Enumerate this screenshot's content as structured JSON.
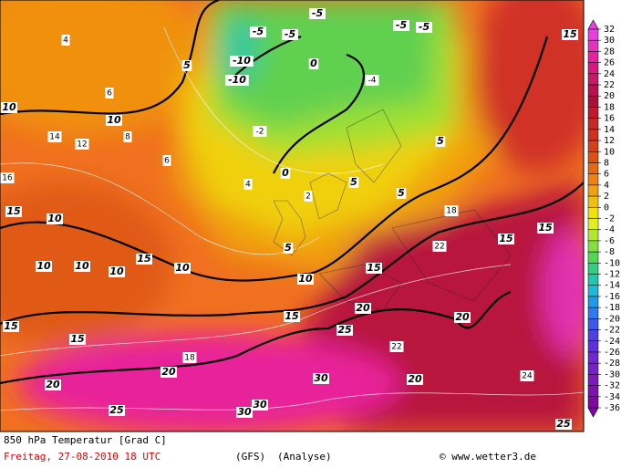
{
  "map": {
    "footer": {
      "title": "850 hPa Temperatur [Grad C]",
      "date": "Freitag, 27-08-2010  18 UTC",
      "model": "(GFS)",
      "kind": "(Analyse)",
      "credit": "© www.wetter3.de"
    },
    "colorbar": {
      "ticks": [
        32,
        30,
        28,
        26,
        24,
        22,
        20,
        18,
        16,
        14,
        12,
        10,
        8,
        6,
        4,
        2,
        0,
        -2,
        -4,
        -6,
        -8,
        -10,
        -12,
        -14,
        -16,
        -18,
        -20,
        -22,
        -24,
        -26,
        -28,
        -30,
        -32,
        -34,
        -36
      ],
      "colors": [
        "#e840e0",
        "#e830c0",
        "#e820a0",
        "#d81880",
        "#c81868",
        "#b81050",
        "#a81038",
        "#c01830",
        "#c82828",
        "#d03020",
        "#d84018",
        "#e05010",
        "#e86810",
        "#f08010",
        "#f0a010",
        "#f0c010",
        "#f0e010",
        "#e0f020",
        "#b0e830",
        "#80e040",
        "#50d850",
        "#30d080",
        "#20c8b0",
        "#20b8d8",
        "#2098e8",
        "#3078f0",
        "#4058e8",
        "#5040e0",
        "#6030d8",
        "#7028d0",
        "#7820c8",
        "#8018c0",
        "#8010b0",
        "#8008a0"
      ]
    },
    "labels": [
      "10",
      "10",
      "10",
      "10",
      "10",
      "10",
      "10",
      "10",
      "15",
      "15",
      "15",
      "15",
      "15",
      "15",
      "15",
      "15",
      "15",
      "20",
      "20",
      "20",
      "20",
      "20",
      "25",
      "25",
      "25",
      "30",
      "30",
      "30",
      "0",
      "0",
      "5",
      "5",
      "5",
      "5",
      "5",
      "-10",
      "-10",
      "-5",
      "-5",
      "-5",
      "-5",
      "-5",
      "4",
      "6",
      "8",
      "12",
      "14",
      "16",
      "18",
      "22",
      "22",
      "24",
      "6",
      "4",
      "2",
      "-2",
      "-4",
      "18"
    ]
  }
}
